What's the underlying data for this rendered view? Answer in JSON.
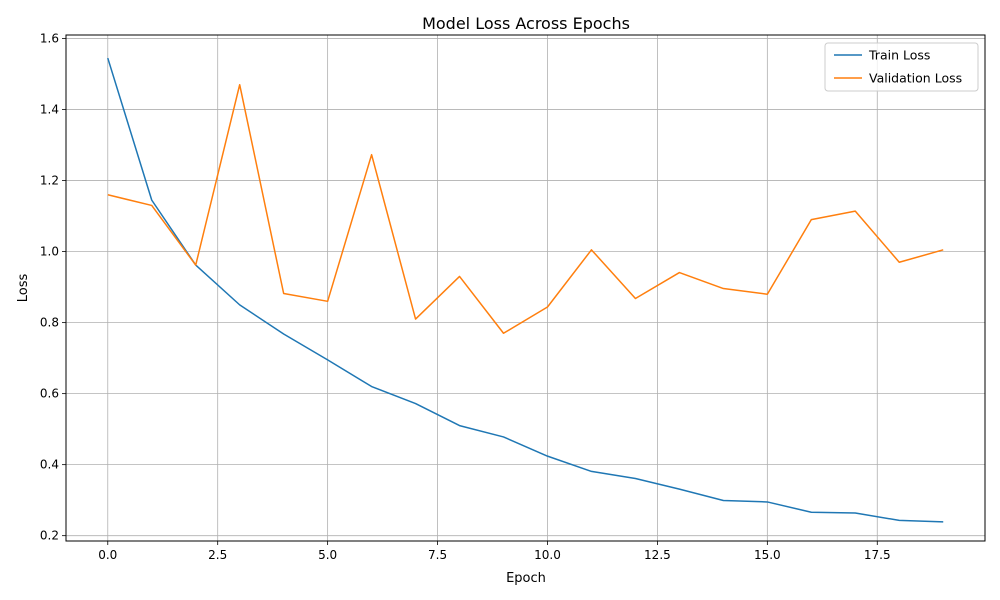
{
  "chart_data": {
    "type": "line",
    "title": "Model Loss Across Epochs",
    "xlabel": "Epoch",
    "ylabel": "Loss",
    "xlim": [
      -0.95,
      19.95
    ],
    "ylim": [
      0.185,
      1.61
    ],
    "x_ticks": [
      0,
      2.5,
      5,
      7.5,
      10,
      12.5,
      15,
      17.5
    ],
    "x_tick_labels": [
      "0.0",
      "2.5",
      "5.0",
      "7.5",
      "10.0",
      "12.5",
      "15.0",
      "17.5"
    ],
    "y_ticks": [
      0.2,
      0.4,
      0.6,
      0.8,
      1.0,
      1.2,
      1.4,
      1.6
    ],
    "y_tick_labels": [
      "0.2",
      "0.4",
      "0.6",
      "0.8",
      "1.0",
      "1.2",
      "1.4",
      "1.6"
    ],
    "grid": true,
    "legend_position": "top-right",
    "x": [
      0,
      1,
      2,
      3,
      4,
      5,
      6,
      7,
      8,
      9,
      10,
      11,
      12,
      13,
      14,
      15,
      16,
      17,
      18,
      19
    ],
    "series": [
      {
        "name": "Train Loss",
        "color": "#1f77b4",
        "values": [
          1.545,
          1.145,
          0.962,
          0.85,
          0.768,
          0.695,
          0.62,
          0.572,
          0.51,
          0.478,
          0.424,
          0.381,
          0.361,
          0.331,
          0.299,
          0.295,
          0.266,
          0.264,
          0.243,
          0.239
        ]
      },
      {
        "name": "Validation Loss",
        "color": "#ff7f0e",
        "values": [
          1.16,
          1.13,
          0.962,
          1.47,
          0.882,
          0.86,
          1.273,
          0.81,
          0.93,
          0.77,
          0.844,
          1.005,
          0.868,
          0.941,
          0.896,
          0.88,
          1.09,
          1.114,
          0.97,
          1.005
        ]
      }
    ]
  }
}
